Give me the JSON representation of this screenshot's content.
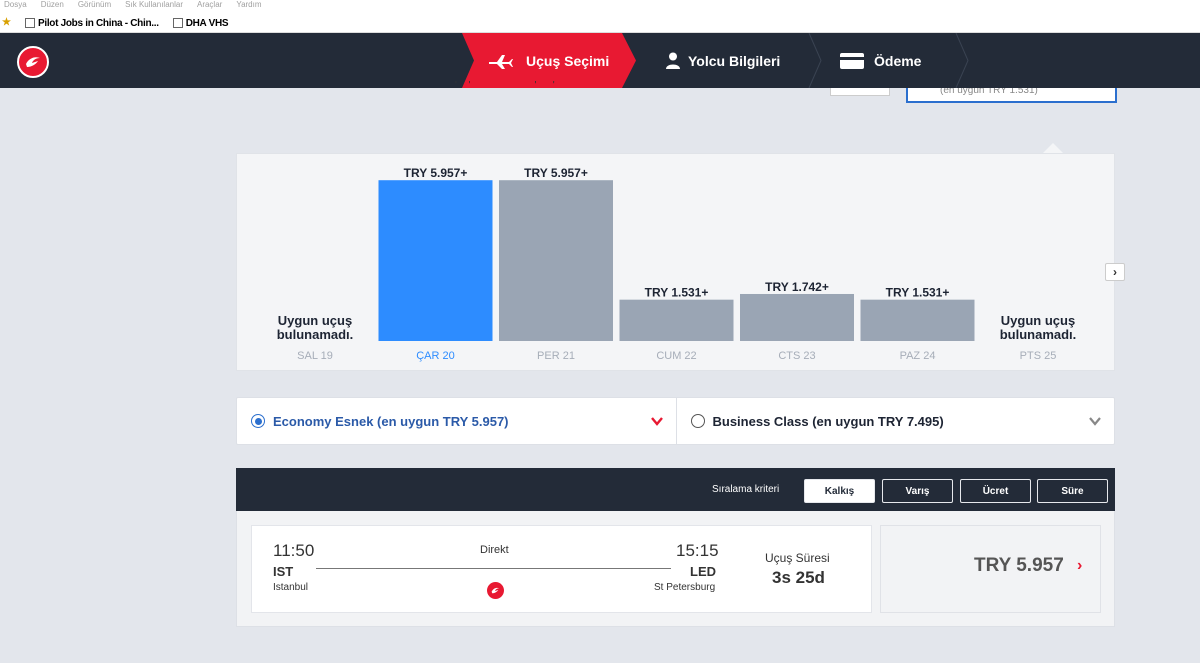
{
  "browser": {
    "menu": [
      "Dosya",
      "Düzen",
      "Görünüm",
      "Sık Kullanılanlar",
      "Araçlar",
      "Yardım"
    ],
    "bookmarks": [
      {
        "label": "Pilot Jobs in China - Chin..."
      },
      {
        "label": "DHA VHS"
      }
    ]
  },
  "nav": {
    "steps": [
      {
        "label": "Uçuş Seçimi",
        "icon": "plane-icon",
        "active": true
      },
      {
        "label": "Yolcu Bilgileri",
        "icon": "user-icon",
        "active": false
      },
      {
        "label": "Ödeme",
        "icon": "card-icon",
        "active": false
      }
    ]
  },
  "search_peek": {
    "fare_hint": "(en uygun TRY 1.531)"
  },
  "chart_data": {
    "type": "bar",
    "categories": [
      "SAL 19",
      "ÇAR 20",
      "PER 21",
      "CUM 22",
      "CTS 23",
      "PAZ 24",
      "PTS 25"
    ],
    "values": [
      null,
      5957,
      5957,
      1531,
      1742,
      1531,
      null
    ],
    "value_labels": [
      "",
      "TRY 5.957+",
      "TRY 5.957+",
      "TRY 1.531+",
      "TRY 1.742+",
      "TRY 1.531+",
      ""
    ],
    "no_flight_label": [
      "Uygun uçuş",
      "bulunamadı."
    ],
    "selected_index": 1,
    "colors": {
      "selected": "#2d8cff",
      "default": "#9aa5b4"
    },
    "ylim": [
      0,
      6150
    ]
  },
  "fare_classes": [
    {
      "label": "Economy Esnek (en uygun TRY 5.957)",
      "selected": true
    },
    {
      "label": "Business Class (en uygun TRY 7.495)",
      "selected": false
    }
  ],
  "sort": {
    "label": "Sıralama kriteri",
    "options": [
      {
        "label": "Kalkış",
        "active": true
      },
      {
        "label": "Varış",
        "active": false
      },
      {
        "label": "Ücret",
        "active": false
      },
      {
        "label": "Süre",
        "active": false
      }
    ]
  },
  "flight": {
    "dep_time": "11:50",
    "dep_code": "IST",
    "dep_city": "Istanbul",
    "arr_time": "15:15",
    "arr_code": "LED",
    "arr_city": "St Petersburg",
    "stops": "Direkt",
    "duration_label": "Uçuş Süresi",
    "duration": "3s 25d",
    "price": "TRY 5.957"
  },
  "colors": {
    "brand_red": "#e81932",
    "nav_dark": "#232b38",
    "accent_blue": "#2b6fce"
  }
}
